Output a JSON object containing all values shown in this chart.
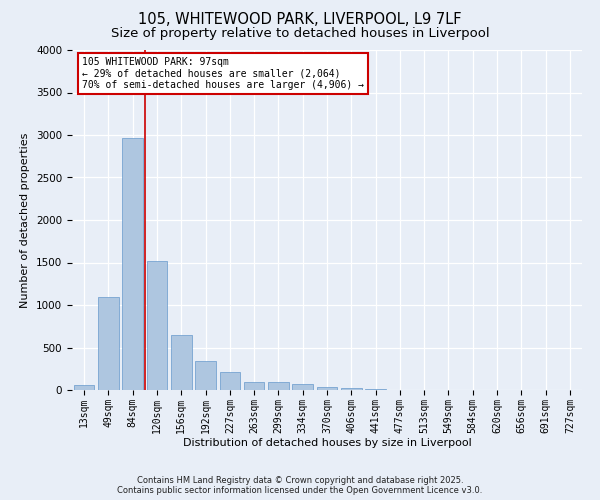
{
  "title_line1": "105, WHITEWOOD PARK, LIVERPOOL, L9 7LF",
  "title_line2": "Size of property relative to detached houses in Liverpool",
  "xlabel": "Distribution of detached houses by size in Liverpool",
  "ylabel": "Number of detached properties",
  "bar_color": "#aec6e0",
  "bar_edge_color": "#6699cc",
  "categories": [
    "13sqm",
    "49sqm",
    "84sqm",
    "120sqm",
    "156sqm",
    "192sqm",
    "227sqm",
    "263sqm",
    "299sqm",
    "334sqm",
    "370sqm",
    "406sqm",
    "441sqm",
    "477sqm",
    "513sqm",
    "549sqm",
    "584sqm",
    "620sqm",
    "656sqm",
    "691sqm",
    "727sqm"
  ],
  "values": [
    55,
    1100,
    2970,
    1520,
    650,
    340,
    215,
    95,
    95,
    65,
    30,
    20,
    10,
    0,
    0,
    0,
    0,
    0,
    0,
    0,
    0
  ],
  "ylim": [
    0,
    4000
  ],
  "yticks": [
    0,
    500,
    1000,
    1500,
    2000,
    2500,
    3000,
    3500,
    4000
  ],
  "vline_x": 2.5,
  "vline_color": "#cc0000",
  "annotation_text": "105 WHITEWOOD PARK: 97sqm\n← 29% of detached houses are smaller (2,064)\n70% of semi-detached houses are larger (4,906) →",
  "annotation_box_color": "#ffffff",
  "annotation_box_edge": "#cc0000",
  "footer_line1": "Contains HM Land Registry data © Crown copyright and database right 2025.",
  "footer_line2": "Contains public sector information licensed under the Open Government Licence v3.0.",
  "bg_color": "#e8eef7",
  "plot_bg_color": "#e8eef7",
  "grid_color": "#ffffff",
  "title_fontsize": 10.5,
  "subtitle_fontsize": 9.5,
  "label_fontsize": 8,
  "tick_fontsize": 7,
  "footer_fontsize": 6
}
